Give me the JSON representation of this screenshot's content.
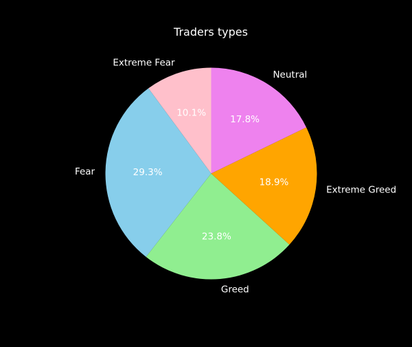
{
  "chart_data": {
    "type": "pie",
    "title": "Traders types",
    "categories": [
      "Extreme Fear",
      "Fear",
      "Greed",
      "Extreme Greed",
      "Neutral"
    ],
    "values": [
      10.1,
      29.3,
      23.8,
      18.9,
      17.8
    ],
    "value_labels": [
      "10.1%",
      "29.3%",
      "23.8%",
      "18.9%",
      "17.8%"
    ],
    "colors": [
      "#ffc0cb",
      "#87ceeb",
      "#90ee90",
      "#ffa500",
      "#ee82ee"
    ],
    "start_angle_deg": 90,
    "direction": "counterclockwise",
    "background": "#000000",
    "text_color": "#ffffff"
  }
}
